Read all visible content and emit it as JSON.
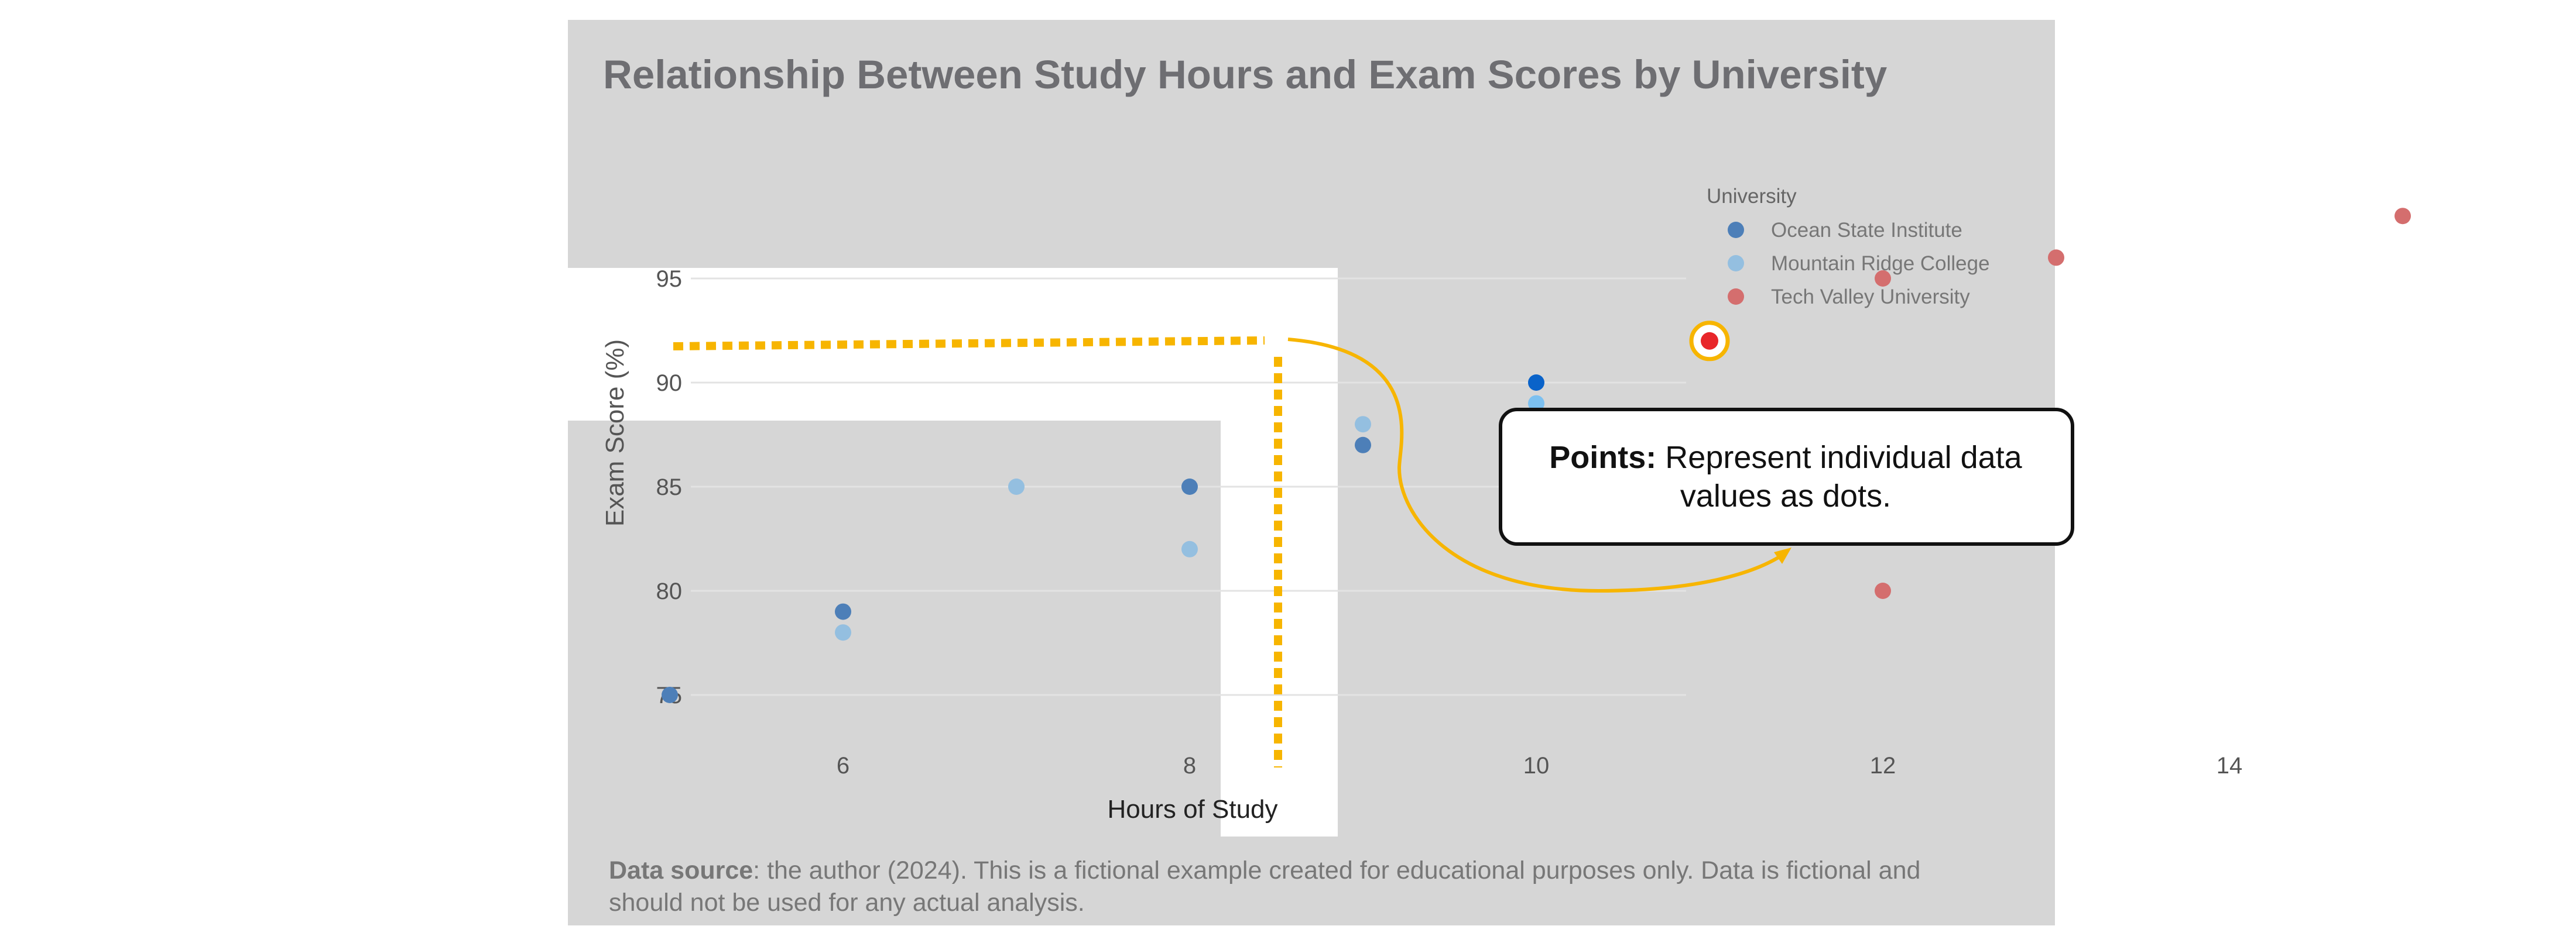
{
  "chart_data": {
    "type": "scatter",
    "title": "Relationship Between Study Hours and Exam Scores by University",
    "xlabel": "Hours of Study",
    "ylabel": "Exam Score (%)",
    "xlim": [
      4,
      17
    ],
    "ylim": [
      72,
      100
    ],
    "xticks": [
      6,
      8,
      10,
      12,
      14
    ],
    "yticks": [
      75,
      80,
      85,
      90,
      95
    ],
    "grid": "horizontal",
    "legend": {
      "title": "University",
      "position": "right"
    },
    "series": [
      {
        "name": "Ocean State Institute",
        "color": "#4d7fb8",
        "points": [
          [
            5,
            75
          ],
          [
            6,
            79
          ],
          [
            8,
            85
          ],
          [
            9,
            87
          ],
          [
            10,
            90
          ]
        ]
      },
      {
        "name": "Mountain Ridge College",
        "color": "#94bfe0",
        "points": [
          [
            6,
            78
          ],
          [
            7,
            85
          ],
          [
            8,
            82
          ],
          [
            9,
            88
          ],
          [
            10,
            89
          ]
        ]
      },
      {
        "name": "Tech Valley University",
        "color": "#d46e6e",
        "points": [
          [
            11,
            92
          ],
          [
            12,
            80
          ],
          [
            12,
            95
          ],
          [
            13,
            96
          ],
          [
            15,
            98
          ]
        ]
      }
    ],
    "highlight": {
      "x": 11,
      "y": 92,
      "color": "#e8262a",
      "ring_color": "#f7b500"
    },
    "annotation": {
      "bold": "Points:",
      "line1": "Represent individual data",
      "line2": "values as dots."
    },
    "source": {
      "bold": "Data source",
      "line1": ": the author (2024). This is a fictional example created for educational purposes only. Data is fictional and",
      "line2": "should not be used for any actual analysis."
    }
  }
}
